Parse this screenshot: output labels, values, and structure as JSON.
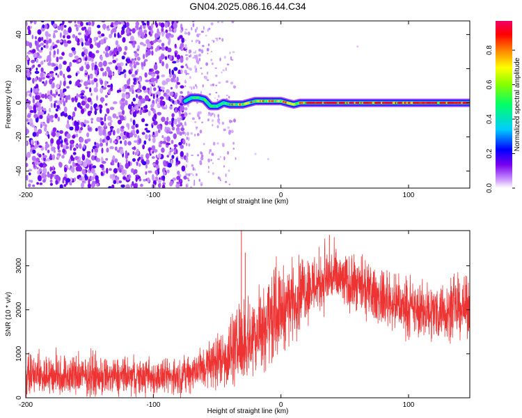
{
  "figure": {
    "title": "GN04.2025.086.16.44.C34"
  },
  "chart_data": [
    {
      "type": "heatmap",
      "title": "GN04.2025.086.16.44.C34",
      "xlabel": "Height of straight line (km)",
      "ylabel": "Frequency (Hz)",
      "xlim": [
        -200,
        148
      ],
      "ylim": [
        -50,
        48
      ],
      "xticks": [
        -200,
        -100,
        0,
        100
      ],
      "yticks": [
        -40,
        -20,
        0,
        20,
        40
      ],
      "grid": false,
      "colorbar": {
        "label": "Normalized spectral amplitude",
        "range": [
          0,
          0.97
        ],
        "ticks": [
          0.0,
          0.2,
          0.4,
          0.6,
          0.8
        ],
        "tick_labels": [
          "0.0",
          "0.2",
          "0.4",
          "0.6",
          "0.8"
        ],
        "colormap": [
          "#ffffff",
          "#cc99ff",
          "#7700ee",
          "#0000ff",
          "#00ccff",
          "#00ff66",
          "#88ff00",
          "#ffff00",
          "#ff8800",
          "#ff0000",
          "#ee0066"
        ]
      },
      "noise_region": {
        "x_range": [
          -200,
          -75
        ],
        "y_range": [
          -50,
          48
        ],
        "typical_amplitude": 0.1
      },
      "sparse_region": {
        "x_range": [
          -75,
          -35
        ],
        "typical_amplitude": 0.05
      },
      "signal_trace": [
        {
          "x": -75,
          "y": 1
        },
        {
          "x": -70,
          "y": 3
        },
        {
          "x": -65,
          "y": 3
        },
        {
          "x": -60,
          "y": 2
        },
        {
          "x": -55,
          "y": -2
        },
        {
          "x": -50,
          "y": -2
        },
        {
          "x": -45,
          "y": 0
        },
        {
          "x": -40,
          "y": -1
        },
        {
          "x": -35,
          "y": -1
        },
        {
          "x": -30,
          "y": -1
        },
        {
          "x": -25,
          "y": 0
        },
        {
          "x": -20,
          "y": 1
        },
        {
          "x": -15,
          "y": 1
        },
        {
          "x": -10,
          "y": 1
        },
        {
          "x": -5,
          "y": 1
        },
        {
          "x": 0,
          "y": 1
        },
        {
          "x": 5,
          "y": 0
        },
        {
          "x": 10,
          "y": -1
        },
        {
          "x": 15,
          "y": 0
        },
        {
          "x": 20,
          "y": 0
        },
        {
          "x": 40,
          "y": 0
        },
        {
          "x": 60,
          "y": 0
        },
        {
          "x": 80,
          "y": 0
        },
        {
          "x": 100,
          "y": 0
        },
        {
          "x": 120,
          "y": 0
        },
        {
          "x": 148,
          "y": 0
        }
      ]
    },
    {
      "type": "line",
      "xlabel": "Height of straight line (km)",
      "ylabel": "SNR (10 * v/v)",
      "xlim": [
        -200,
        148
      ],
      "ylim": [
        0,
        3800
      ],
      "xticks": [
        -200,
        -100,
        0,
        100
      ],
      "yticks": [
        0,
        1000,
        2000,
        3000
      ],
      "grid": false,
      "series": [
        {
          "color": "#ee3333",
          "envelope": [
            {
              "x": -200,
              "mean": 500,
              "spread": 550
            },
            {
              "x": -160,
              "mean": 500,
              "spread": 550
            },
            {
              "x": -120,
              "mean": 470,
              "spread": 480
            },
            {
              "x": -80,
              "mean": 470,
              "spread": 450
            },
            {
              "x": -60,
              "mean": 700,
              "spread": 600
            },
            {
              "x": -40,
              "mean": 1000,
              "spread": 900
            },
            {
              "x": -20,
              "mean": 1500,
              "spread": 1200
            },
            {
              "x": 0,
              "mean": 2000,
              "spread": 1100
            },
            {
              "x": 20,
              "mean": 2500,
              "spread": 900
            },
            {
              "x": 40,
              "mean": 2750,
              "spread": 800
            },
            {
              "x": 60,
              "mean": 2500,
              "spread": 700
            },
            {
              "x": 80,
              "mean": 2250,
              "spread": 700
            },
            {
              "x": 100,
              "mean": 2000,
              "spread": 700
            },
            {
              "x": 120,
              "mean": 1950,
              "spread": 750
            },
            {
              "x": 148,
              "mean": 2050,
              "spread": 750
            }
          ],
          "peaks": [
            {
              "x": -31,
              "y": 3800
            },
            {
              "x": -28,
              "y": 3300
            },
            {
              "x": 38,
              "y": 3700
            }
          ]
        }
      ]
    }
  ]
}
